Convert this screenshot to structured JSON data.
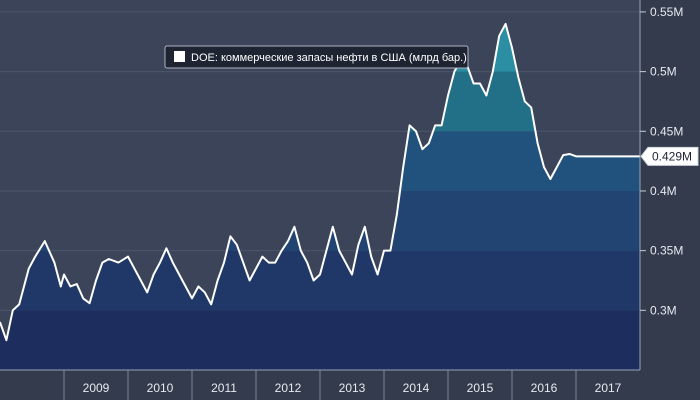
{
  "chart_data": {
    "type": "area",
    "legend": "DOE: коммерческие запасы нефти в США (млрд бар.)",
    "legend_position": "top-left",
    "y_axis_side": "right",
    "ylim": [
      0.25,
      0.56
    ],
    "yticks": [
      {
        "value": 0.3,
        "label": "0.3M"
      },
      {
        "value": 0.35,
        "label": "0.35M"
      },
      {
        "value": 0.4,
        "label": "0.4M"
      },
      {
        "value": 0.45,
        "label": "0.45M"
      },
      {
        "value": 0.5,
        "label": "0.5M"
      },
      {
        "value": 0.55,
        "label": "0.55M"
      }
    ],
    "xlim": [
      2008.0,
      2018.0
    ],
    "xticks": [
      {
        "value": 2009,
        "label": "2009"
      },
      {
        "value": 2010,
        "label": "2010"
      },
      {
        "value": 2011,
        "label": "2011"
      },
      {
        "value": 2012,
        "label": "2012"
      },
      {
        "value": 2013,
        "label": "2013"
      },
      {
        "value": 2014,
        "label": "2014"
      },
      {
        "value": 2015,
        "label": "2015"
      },
      {
        "value": 2016,
        "label": "2016"
      },
      {
        "value": 2017,
        "label": "2017"
      }
    ],
    "last_value_label": "0.429M",
    "band_colors": [
      "#1c2d5e",
      "#203868",
      "#214472",
      "#21527d",
      "#217088",
      "#2b8ea2"
    ],
    "line_color": "#ffffff",
    "background_color": "#3b4458",
    "series": [
      {
        "x": [
          2008.0,
          2008.1,
          2008.2,
          2008.3,
          2008.45,
          2008.55,
          2008.7,
          2008.85,
          2008.95,
          2009.0,
          2009.1,
          2009.2,
          2009.3,
          2009.4,
          2009.5,
          2009.6,
          2009.7,
          2009.85,
          2010.0,
          2010.1,
          2010.2,
          2010.3,
          2010.4,
          2010.5,
          2010.6,
          2010.7,
          2010.8,
          2010.95,
          2011.0,
          2011.1,
          2011.2,
          2011.3,
          2011.4,
          2011.5,
          2011.6,
          2011.7,
          2011.8,
          2011.9,
          2012.0,
          2012.1,
          2012.2,
          2012.3,
          2012.4,
          2012.5,
          2012.6,
          2012.7,
          2012.8,
          2012.9,
          2013.0,
          2013.1,
          2013.2,
          2013.3,
          2013.4,
          2013.5,
          2013.6,
          2013.7,
          2013.8,
          2013.9,
          2014.0,
          2014.1,
          2014.2,
          2014.3,
          2014.4,
          2014.5,
          2014.6,
          2014.7,
          2014.8,
          2014.9,
          2015.0,
          2015.1,
          2015.2,
          2015.3,
          2015.4,
          2015.5,
          2015.6,
          2015.7,
          2015.8,
          2015.9,
          2016.0,
          2016.1,
          2016.2,
          2016.3,
          2016.4,
          2016.5,
          2016.6,
          2016.7,
          2016.8,
          2016.9,
          2017.0,
          2017.1,
          2017.2,
          2017.3,
          2017.4,
          2017.5,
          2017.6,
          2017.7,
          2017.8,
          2017.9,
          2018.0
        ],
        "y": [
          0.29,
          0.275,
          0.3,
          0.305,
          0.335,
          0.345,
          0.358,
          0.34,
          0.32,
          0.33,
          0.32,
          0.322,
          0.31,
          0.306,
          0.325,
          0.34,
          0.343,
          0.34,
          0.345,
          0.335,
          0.325,
          0.315,
          0.33,
          0.34,
          0.352,
          0.34,
          0.33,
          0.315,
          0.31,
          0.32,
          0.315,
          0.305,
          0.325,
          0.34,
          0.362,
          0.355,
          0.34,
          0.325,
          0.335,
          0.345,
          0.34,
          0.34,
          0.35,
          0.358,
          0.37,
          0.35,
          0.34,
          0.325,
          0.33,
          0.35,
          0.37,
          0.35,
          0.34,
          0.33,
          0.355,
          0.37,
          0.345,
          0.33,
          0.35,
          0.35,
          0.38,
          0.42,
          0.455,
          0.45,
          0.435,
          0.44,
          0.455,
          0.455,
          0.48,
          0.5,
          0.51,
          0.505,
          0.49,
          0.49,
          0.48,
          0.5,
          0.53,
          0.54,
          0.52,
          0.495,
          0.475,
          0.47,
          0.44,
          0.42,
          0.41,
          0.42,
          0.43,
          0.431,
          0.429,
          0.429,
          0.429,
          0.429,
          0.429,
          0.429,
          0.429,
          0.429,
          0.429,
          0.429,
          0.429
        ]
      }
    ]
  }
}
